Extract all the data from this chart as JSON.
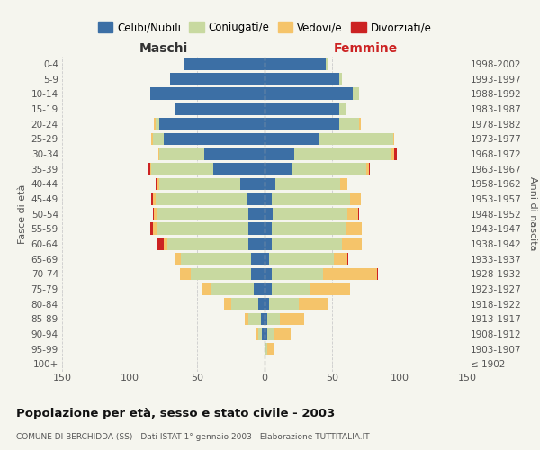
{
  "age_groups": [
    "100+",
    "95-99",
    "90-94",
    "85-89",
    "80-84",
    "75-79",
    "70-74",
    "65-69",
    "60-64",
    "55-59",
    "50-54",
    "45-49",
    "40-44",
    "35-39",
    "30-34",
    "25-29",
    "20-24",
    "15-19",
    "10-14",
    "5-9",
    "0-4"
  ],
  "birth_years": [
    "≤ 1902",
    "1903-1907",
    "1908-1912",
    "1913-1917",
    "1918-1922",
    "1923-1927",
    "1928-1932",
    "1933-1937",
    "1938-1942",
    "1943-1947",
    "1948-1952",
    "1953-1957",
    "1958-1962",
    "1963-1967",
    "1968-1972",
    "1973-1977",
    "1978-1982",
    "1983-1987",
    "1988-1992",
    "1993-1997",
    "1998-2002"
  ],
  "males_celibe": [
    0,
    0,
    2,
    3,
    5,
    8,
    10,
    10,
    12,
    12,
    12,
    13,
    18,
    38,
    45,
    75,
    78,
    66,
    85,
    70,
    60
  ],
  "males_coniugato": [
    0,
    0,
    3,
    9,
    20,
    32,
    45,
    52,
    60,
    68,
    68,
    68,
    60,
    46,
    33,
    8,
    3,
    0,
    0,
    0,
    0
  ],
  "males_vedovo": [
    0,
    0,
    2,
    3,
    5,
    6,
    8,
    5,
    3,
    3,
    2,
    2,
    2,
    1,
    1,
    1,
    1,
    0,
    0,
    0,
    0
  ],
  "males_divorziato": [
    0,
    0,
    0,
    0,
    0,
    0,
    0,
    0,
    5,
    2,
    1,
    1,
    1,
    1,
    0,
    0,
    0,
    0,
    0,
    0,
    0
  ],
  "females_nubile": [
    0,
    0,
    2,
    2,
    3,
    5,
    5,
    3,
    5,
    5,
    6,
    5,
    8,
    20,
    22,
    40,
    55,
    55,
    65,
    55,
    45
  ],
  "females_coniugata": [
    0,
    2,
    5,
    9,
    22,
    28,
    38,
    48,
    52,
    55,
    55,
    58,
    48,
    55,
    72,
    55,
    15,
    5,
    5,
    2,
    2
  ],
  "females_vedova": [
    0,
    5,
    12,
    18,
    22,
    30,
    40,
    10,
    15,
    12,
    8,
    8,
    5,
    2,
    2,
    1,
    1,
    0,
    0,
    0,
    0
  ],
  "females_divorziata": [
    0,
    0,
    0,
    0,
    0,
    0,
    1,
    1,
    0,
    0,
    1,
    0,
    0,
    1,
    2,
    0,
    0,
    0,
    0,
    0,
    0
  ],
  "color_celibe": "#3c6fa5",
  "color_coniugato": "#c8d9a0",
  "color_vedovo": "#f5c46a",
  "color_divorziato": "#cc2222",
  "xlim": 150,
  "title": "Popolazione per età, sesso e stato civile - 2003",
  "subtitle": "COMUNE DI BERCHIDDA (SS) - Dati ISTAT 1° gennaio 2003 - Elaborazione TUTTITALIA.IT",
  "label_maschi": "Maschi",
  "label_femmine": "Femmine",
  "ylabel_left": "Fasce di età",
  "ylabel_right": "Anni di nascita",
  "bg_color": "#f5f5ee",
  "grid_color": "#cccccc",
  "legend_labels": [
    "Celibi/Nubili",
    "Coniugati/e",
    "Vedovi/e",
    "Divorziati/e"
  ]
}
